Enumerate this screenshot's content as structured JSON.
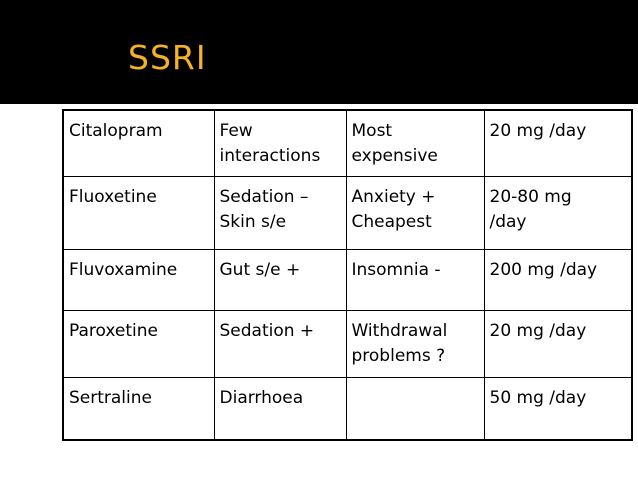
{
  "slide": {
    "title": "SSRI",
    "title_color": "#f5b323",
    "header_background": "#000000"
  },
  "table": {
    "rows": [
      {
        "drug": [
          "Citalopram"
        ],
        "effect": [
          "Few",
          "interactions"
        ],
        "note": [
          "Most",
          "expensive"
        ],
        "dose": [
          "20 mg /day"
        ]
      },
      {
        "drug": [
          "Fluoxetine"
        ],
        "effect": [
          "Sedation –",
          "Skin s/e"
        ],
        "note": [
          "Anxiety +",
          "Cheapest"
        ],
        "dose": [
          "20-80 mg",
          "/day"
        ]
      },
      {
        "drug": [
          "Fluvoxamine"
        ],
        "effect": [
          "Gut s/e +"
        ],
        "note": [
          "Insomnia -"
        ],
        "dose": [
          "200 mg /day"
        ]
      },
      {
        "drug": [
          "Paroxetine"
        ],
        "effect": [
          "Sedation +"
        ],
        "note": [
          "Withdrawal",
          "problems ?"
        ],
        "dose": [
          "20 mg /day"
        ]
      },
      {
        "drug": [
          "Sertraline"
        ],
        "effect": [
          "Diarrhoea"
        ],
        "note": [],
        "dose": [
          "50 mg /day"
        ]
      }
    ]
  }
}
